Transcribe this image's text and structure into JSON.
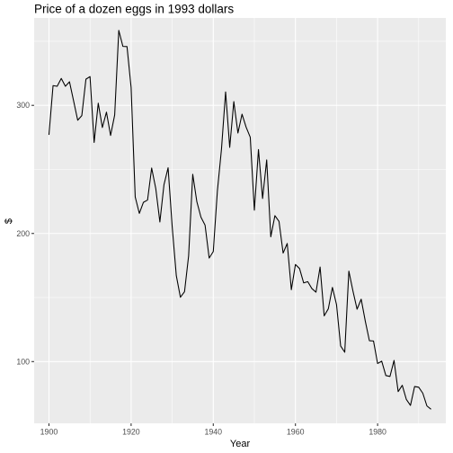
{
  "chart_data": {
    "type": "line",
    "title": "Price of a dozen eggs in 1993 dollars",
    "xlabel": "Year",
    "ylabel": "$",
    "xlim": [
      1896.4,
      1996.6
    ],
    "ylim": [
      51.8,
      368.2
    ],
    "x_ticks": [
      1900,
      1920,
      1940,
      1960,
      1980
    ],
    "x_tick_labels": [
      "1900",
      "1920",
      "1940",
      "1960",
      "1980"
    ],
    "y_ticks": [
      100,
      200,
      300
    ],
    "y_tick_labels": [
      "100",
      "200",
      "300"
    ],
    "grid": true,
    "legend": "none",
    "series": [
      {
        "color": "#000000",
        "x": [
          1900,
          1901,
          1902,
          1903,
          1904,
          1905,
          1906,
          1907,
          1908,
          1909,
          1910,
          1911,
          1912,
          1913,
          1914,
          1915,
          1916,
          1917,
          1918,
          1919,
          1920,
          1921,
          1922,
          1923,
          1924,
          1925,
          1926,
          1927,
          1928,
          1929,
          1930,
          1931,
          1932,
          1933,
          1934,
          1935,
          1936,
          1937,
          1938,
          1939,
          1940,
          1941,
          1942,
          1943,
          1944,
          1945,
          1946,
          1947,
          1948,
          1949,
          1950,
          1951,
          1952,
          1953,
          1954,
          1955,
          1956,
          1957,
          1958,
          1959,
          1960,
          1961,
          1962,
          1963,
          1964,
          1965,
          1966,
          1967,
          1968,
          1969,
          1970,
          1971,
          1972,
          1973,
          1974,
          1975,
          1976,
          1977,
          1978,
          1979,
          1980,
          1981,
          1982,
          1983,
          1984,
          1985,
          1986,
          1987,
          1988,
          1989,
          1990,
          1991,
          1992,
          1993
        ],
        "values": [
          277.0,
          315.4,
          314.9,
          321.0,
          314.9,
          318.4,
          303.5,
          288.4,
          292.0,
          320.4,
          322.5,
          271.1,
          301.7,
          282.7,
          294.7,
          276.5,
          292.5,
          358.5,
          346.0,
          345.9,
          314.0,
          228.5,
          215.7,
          224.3,
          226.1,
          251.1,
          235.1,
          209.0,
          238.1,
          251.3,
          205.3,
          167.1,
          150.2,
          154.5,
          182.6,
          246.2,
          224.8,
          212.7,
          206.5,
          180.8,
          185.9,
          233.2,
          266.0,
          310.5,
          267.2,
          302.9,
          278.4,
          293.1,
          282.9,
          275.1,
          218.2,
          265.5,
          227.3,
          257.4,
          197.4,
          213.9,
          209.4,
          184.7,
          192.2,
          156.1,
          175.8,
          172.6,
          161.4,
          162.4,
          157.0,
          154.2,
          173.8,
          135.7,
          141.2,
          157.9,
          144.4,
          112.2,
          107.3,
          170.6,
          155.0,
          140.9,
          148.7,
          131.6,
          116.3,
          116.1,
          98.5,
          100.3,
          89.1,
          88.4,
          100.9,
          76.6,
          81.5,
          70.4,
          65.8,
          80.5,
          80.0,
          75.3,
          65.4,
          62.8
        ]
      }
    ]
  }
}
